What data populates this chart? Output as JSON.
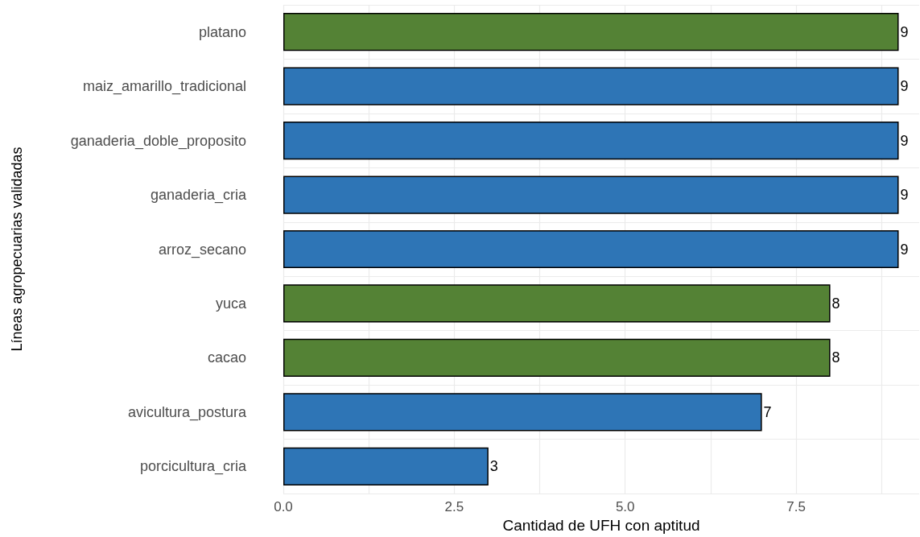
{
  "chart_data": {
    "type": "bar",
    "orientation": "horizontal",
    "xlabel": "Cantidad de UFH con aptitud",
    "ylabel": "Líneas agropecuarias validadas",
    "categories": [
      "platano",
      "maiz_amarillo_tradicional",
      "ganaderia_doble_proposito",
      "ganaderia_cria",
      "arroz_secano",
      "yuca",
      "cacao",
      "avicultura_postura",
      "porcicultura_cria"
    ],
    "values": [
      9,
      9,
      9,
      9,
      9,
      8,
      8,
      7,
      3
    ],
    "colors": [
      "#548235",
      "#2e75b6",
      "#2e75b6",
      "#2e75b6",
      "#2e75b6",
      "#548235",
      "#548235",
      "#2e75b6",
      "#2e75b6"
    ],
    "xlim": [
      0,
      9.3
    ],
    "xticks": [
      {
        "value": 0,
        "label": "0.0"
      },
      {
        "value": 1.25,
        "label": null
      },
      2.5,
      {
        "value": 3.75,
        "label": null
      },
      {
        "value": 5,
        "label": "5.0"
      },
      {
        "value": 6.25,
        "label": null
      },
      7.5,
      {
        "value": 8.75,
        "label": null
      }
    ],
    "grid": true,
    "data_labels": true
  }
}
